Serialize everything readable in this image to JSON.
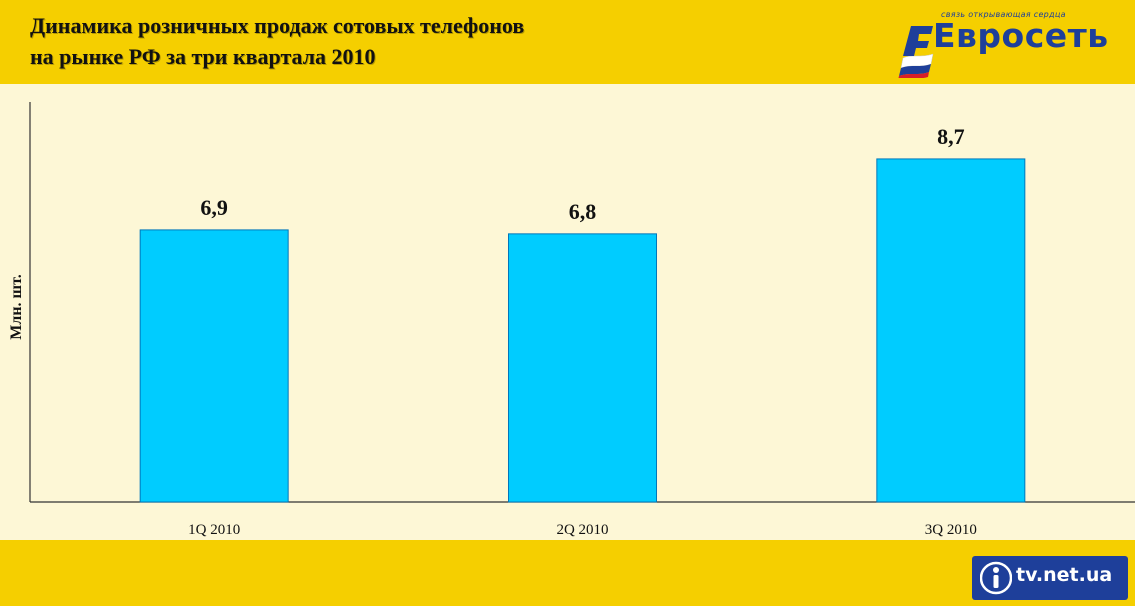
{
  "header": {
    "title_line1": "Динамика розничных продаж сотовых телефонов",
    "title_line2": "на рынке РФ за три квартала 2010"
  },
  "logo": {
    "tagline": "связь открывающая сердца",
    "wordmark": "Евросеть"
  },
  "watermark": {
    "text": "tv.net.ua"
  },
  "colors": {
    "bar": "#00ccff",
    "bar_stroke": "#0077bb",
    "axis": "#333333",
    "header_bg": "#f5cf00",
    "chart_bg": "#fdf7d6",
    "logo_blue": "#1e3f9a"
  },
  "chart_data": {
    "type": "bar",
    "title": "Динамика розничных продаж сотовых телефонов на рынке РФ за три квартала 2010",
    "xlabel": "",
    "ylabel": "Млн. шт.",
    "categories": [
      "1Q 2010",
      "2Q 2010",
      "3Q 2010"
    ],
    "values": [
      6.9,
      6.8,
      8.7
    ],
    "value_labels": [
      "6,9",
      "6,8",
      "8,7"
    ],
    "ylim": [
      0,
      10.6
    ],
    "grid": false,
    "legend": "none"
  }
}
